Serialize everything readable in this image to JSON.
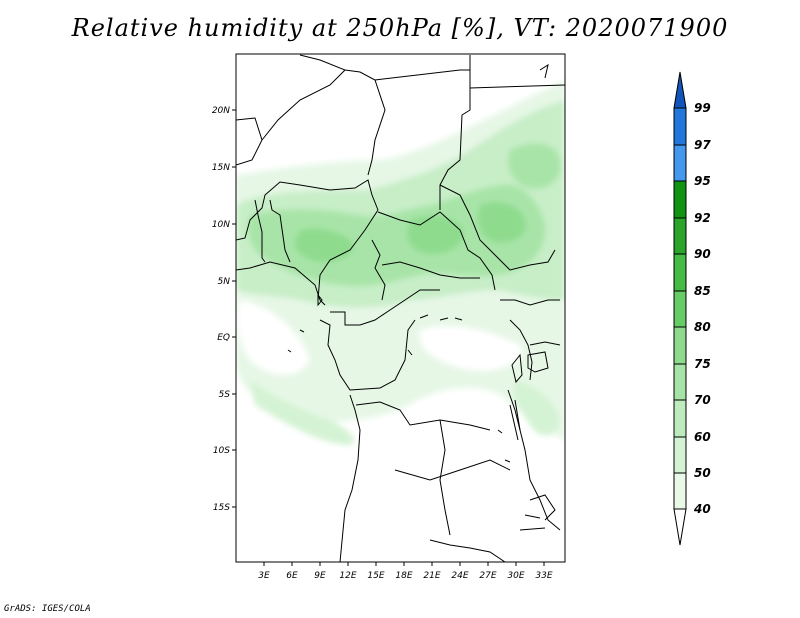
{
  "title": "Relative humidity at 250hPa [%], VT: 2020071900",
  "credit": "GrADS: IGES/COLA",
  "map": {
    "variable": "Relative humidity",
    "level": "250hPa",
    "units": "%",
    "valid_time": "2020071900",
    "lat_labels": [
      "20N",
      "15N",
      "10N",
      "5N",
      "EQ",
      "5S",
      "10S",
      "15S"
    ],
    "lon_labels": [
      "3E",
      "6E",
      "9E",
      "12E",
      "15E",
      "18E",
      "21E",
      "24E",
      "27E",
      "30E",
      "33E"
    ]
  },
  "colorbar": {
    "labels": [
      "40",
      "50",
      "60",
      "70",
      "75",
      "80",
      "85",
      "90",
      "92",
      "95",
      "97",
      "99"
    ],
    "colors": [
      "#ffffff",
      "#e8f9e8",
      "#d4f3d4",
      "#bdebbd",
      "#a6e3a6",
      "#8edb8e",
      "#66cc66",
      "#44bb44",
      "#2aa52a",
      "#119311",
      "#4499ee",
      "#2277dd",
      "#1155bb"
    ]
  }
}
